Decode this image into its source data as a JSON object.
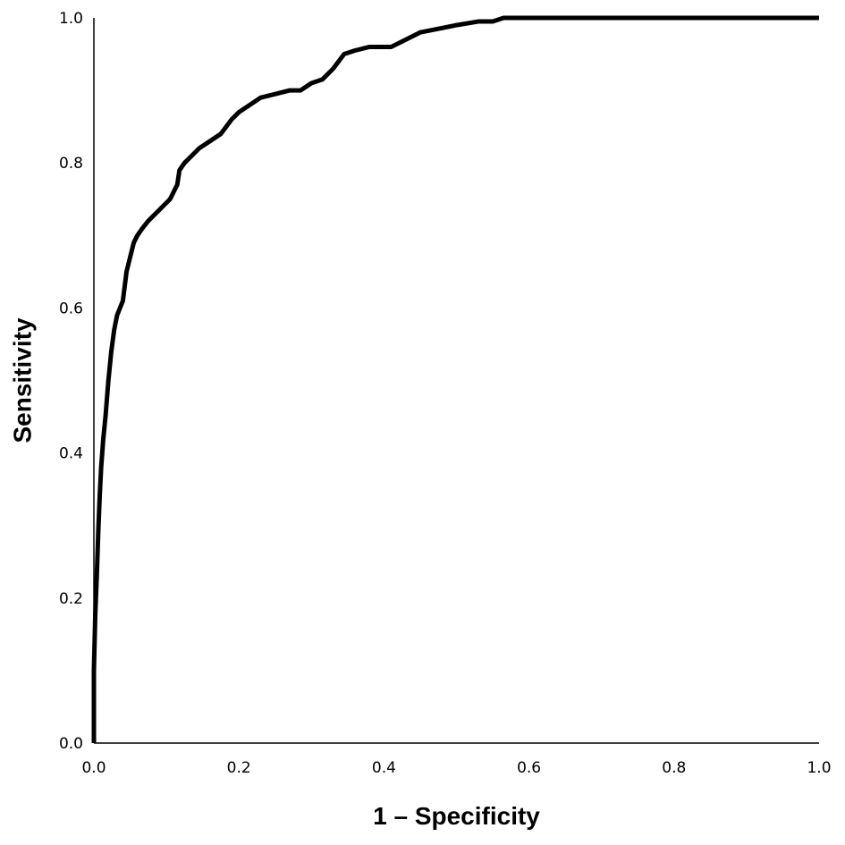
{
  "chart_data": {
    "type": "line",
    "title": "",
    "xlabel": "1 – Specificity",
    "ylabel": "Sensitivity",
    "xlim": [
      0.0,
      1.0
    ],
    "ylim": [
      0.0,
      1.0
    ],
    "x_ticks": [
      "0.0",
      "0.2",
      "0.4",
      "0.6",
      "0.8",
      "1.0"
    ],
    "y_ticks": [
      "0.0",
      "0.2",
      "0.4",
      "0.6",
      "0.8",
      "1.0"
    ],
    "grid": false,
    "legend": "none",
    "series": [
      {
        "color": "#000000",
        "x": [
          0.0,
          0.0,
          0.002,
          0.004,
          0.006,
          0.008,
          0.01,
          0.013,
          0.016,
          0.02,
          0.024,
          0.028,
          0.032,
          0.036,
          0.04,
          0.045,
          0.05,
          0.055,
          0.06,
          0.067,
          0.075,
          0.085,
          0.095,
          0.105,
          0.115,
          0.118,
          0.125,
          0.135,
          0.145,
          0.16,
          0.175,
          0.19,
          0.2,
          0.215,
          0.23,
          0.25,
          0.27,
          0.285,
          0.3,
          0.315,
          0.33,
          0.345,
          0.36,
          0.38,
          0.41,
          0.43,
          0.45,
          0.475,
          0.5,
          0.53,
          0.55,
          0.565,
          0.6,
          0.7,
          0.8,
          0.9,
          1.0
        ],
        "y": [
          0.0,
          0.1,
          0.18,
          0.23,
          0.29,
          0.34,
          0.38,
          0.42,
          0.45,
          0.5,
          0.54,
          0.57,
          0.59,
          0.6,
          0.61,
          0.65,
          0.67,
          0.69,
          0.7,
          0.71,
          0.72,
          0.73,
          0.74,
          0.75,
          0.77,
          0.79,
          0.8,
          0.81,
          0.82,
          0.83,
          0.84,
          0.86,
          0.87,
          0.88,
          0.89,
          0.895,
          0.9,
          0.9,
          0.91,
          0.915,
          0.93,
          0.95,
          0.955,
          0.96,
          0.96,
          0.97,
          0.98,
          0.985,
          0.99,
          0.995,
          0.995,
          1.0,
          1.0,
          1.0,
          1.0,
          1.0,
          1.0
        ]
      }
    ]
  }
}
